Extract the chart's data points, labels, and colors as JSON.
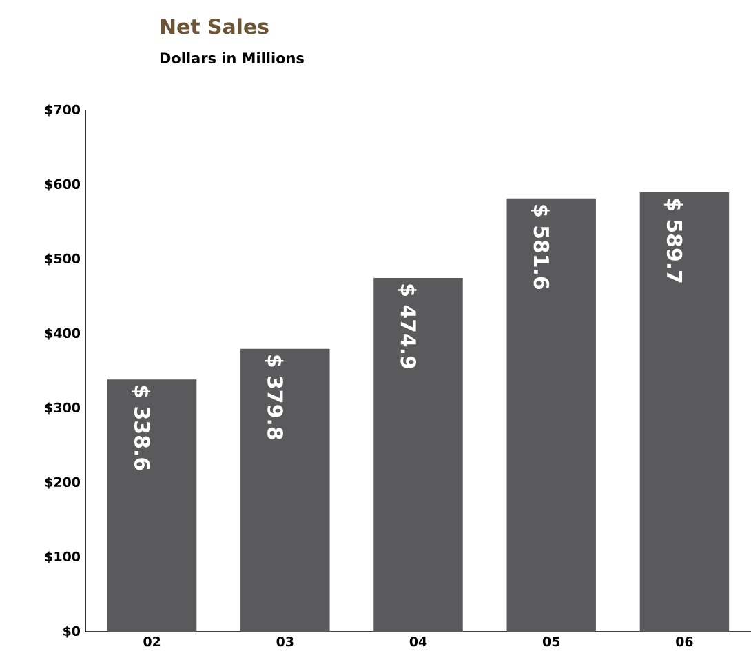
{
  "chart_data": {
    "type": "bar",
    "title": "Net Sales",
    "subtitle": "Dollars in Millions",
    "categories": [
      "02",
      "03",
      "04",
      "05",
      "06"
    ],
    "values": [
      338.6,
      379.8,
      474.9,
      581.6,
      589.7
    ],
    "value_labels": [
      "$ 338.6",
      "$ 379.8",
      "$ 474.9",
      "$ 581.6",
      "$ 589.7"
    ],
    "color": "#5a5a5c",
    "ylim": [
      0,
      700
    ],
    "yticks": [
      {
        "value": 0,
        "label": "$0"
      },
      {
        "value": 100,
        "label": "$100"
      },
      {
        "value": 200,
        "label": "$200"
      },
      {
        "value": 300,
        "label": "$300"
      },
      {
        "value": 400,
        "label": "$400"
      },
      {
        "value": 500,
        "label": "$500"
      },
      {
        "value": 600,
        "label": "$600"
      },
      {
        "value": 700,
        "label": "$700"
      }
    ]
  }
}
